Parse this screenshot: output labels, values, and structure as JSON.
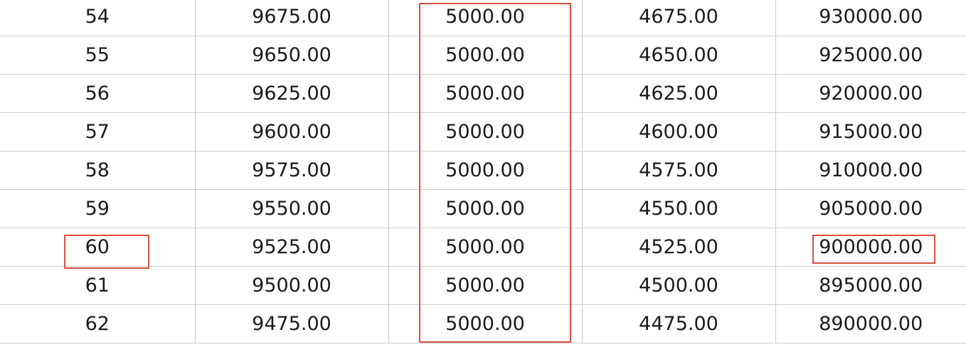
{
  "sheet": {
    "rows": [
      [
        "54",
        "9675.00",
        "5000.00",
        "4675.00",
        "930000.00"
      ],
      [
        "55",
        "9650.00",
        "5000.00",
        "4650.00",
        "925000.00"
      ],
      [
        "56",
        "9625.00",
        "5000.00",
        "4625.00",
        "920000.00"
      ],
      [
        "57",
        "9600.00",
        "5000.00",
        "4600.00",
        "915000.00"
      ],
      [
        "58",
        "9575.00",
        "5000.00",
        "4575.00",
        "910000.00"
      ],
      [
        "59",
        "9550.00",
        "5000.00",
        "4550.00",
        "905000.00"
      ],
      [
        "60",
        "9525.00",
        "5000.00",
        "4525.00",
        "900000.00"
      ],
      [
        "61",
        "9500.00",
        "5000.00",
        "4500.00",
        "895000.00"
      ],
      [
        "62",
        "9475.00",
        "5000.00",
        "4475.00",
        "890000.00"
      ]
    ]
  },
  "highlights": {
    "color": "#d9503f"
  }
}
